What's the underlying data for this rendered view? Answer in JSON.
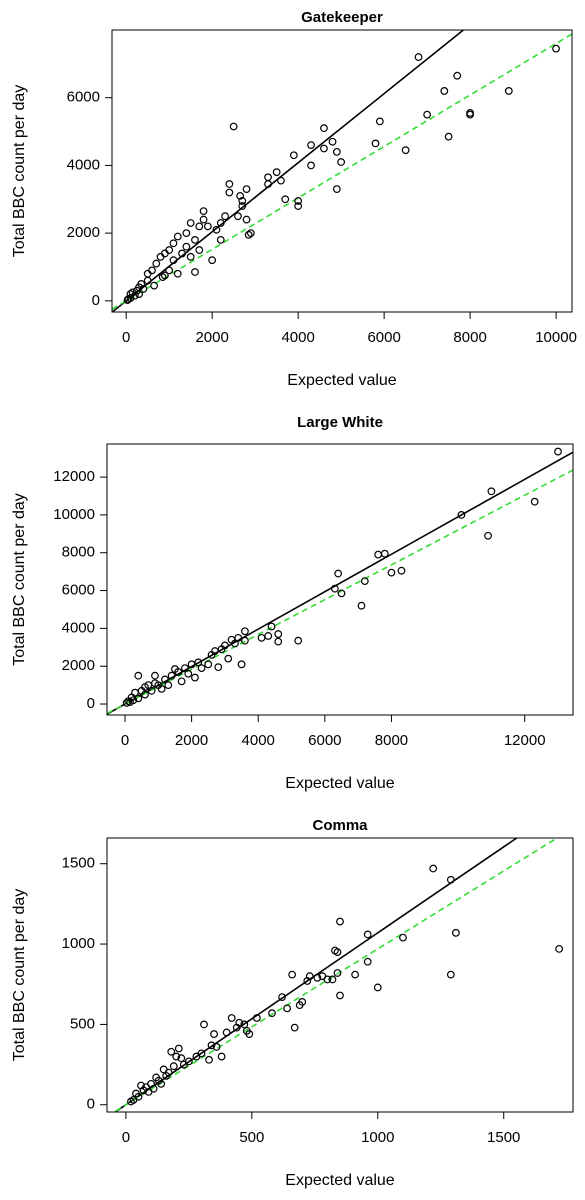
{
  "chart_data": [
    {
      "type": "scatter",
      "title": "Gatekeeper",
      "x_label": "Expected value",
      "y_label": "Total BBC count per day",
      "xlim": [
        -330,
        10370
      ],
      "ylim": [
        -330,
        8000
      ],
      "xticks": [
        0,
        2000,
        4000,
        6000,
        8000,
        10000
      ],
      "yticks": [
        0,
        2000,
        4000,
        6000
      ],
      "color": "#000000",
      "x": [
        10000,
        8900,
        8000,
        8000,
        7700,
        7400,
        7500,
        7000,
        6800,
        6500,
        5900,
        5800,
        5000,
        4900,
        4900,
        4800,
        4600,
        4600,
        4300,
        4300,
        4000,
        4000,
        3900,
        3700,
        3600,
        3500,
        3300,
        3300,
        2900,
        2850,
        2800,
        2800,
        2700,
        2700,
        2650,
        2600,
        2500,
        2400,
        2400,
        2300,
        2200,
        2000,
        1900,
        1800,
        1800,
        1700,
        1600,
        1600,
        1500,
        1400,
        1400,
        1300,
        1200,
        1100,
        1100,
        1000,
        1000,
        900,
        850,
        800,
        700,
        650,
        600,
        500,
        500,
        400,
        350,
        300,
        300,
        250,
        200,
        150,
        100,
        100,
        50,
        30,
        1500,
        1200,
        900,
        2100,
        1700,
        2200
      ],
      "values": [
        7450,
        6200,
        5500,
        5550,
        6650,
        6200,
        4850,
        5500,
        7200,
        4450,
        5300,
        4650,
        4100,
        4400,
        3300,
        4700,
        5100,
        4500,
        4600,
        4000,
        2950,
        2800,
        4300,
        3000,
        3550,
        3800,
        3450,
        3650,
        2000,
        1950,
        2400,
        3300,
        2800,
        2950,
        3100,
        2500,
        5150,
        3450,
        3200,
        2500,
        1800,
        1200,
        2200,
        2650,
        2400,
        2200,
        850,
        1800,
        2300,
        1600,
        2000,
        1400,
        1900,
        1700,
        1200,
        1500,
        900,
        1400,
        700,
        1300,
        1100,
        450,
        900,
        600,
        800,
        350,
        500,
        200,
        400,
        300,
        150,
        250,
        80,
        200,
        50,
        20,
        1300,
        800,
        750,
        2100,
        1500,
        2300
      ],
      "fits": [
        {
          "slope": 1.02,
          "intercept": 0,
          "color": "#000000",
          "dashed": false
        },
        {
          "slope": 0.76,
          "intercept": 0,
          "color": "#33dd33",
          "dashed": true
        }
      ]
    },
    {
      "type": "scatter",
      "title": "Large White",
      "x_label": "Expected value",
      "y_label": "Total BBC count per day",
      "xlim": [
        -540,
        13450
      ],
      "ylim": [
        -580,
        13750
      ],
      "xticks": [
        0,
        2000,
        4000,
        6000,
        8000,
        12000
      ],
      "yticks": [
        0,
        2000,
        4000,
        6000,
        8000,
        10000,
        12000
      ],
      "color": "#000000",
      "x": [
        13000,
        12300,
        11000,
        10900,
        10100,
        8300,
        8000,
        7800,
        7600,
        7200,
        7100,
        6500,
        6400,
        6300,
        5200,
        4600,
        4600,
        4400,
        4300,
        4100,
        3600,
        3600,
        3500,
        3400,
        3300,
        3200,
        3100,
        2900,
        2800,
        2700,
        2600,
        2500,
        2300,
        2200,
        2100,
        2000,
        1900,
        1800,
        1700,
        1500,
        1400,
        1300,
        1200,
        1000,
        900,
        800,
        700,
        600,
        500,
        400,
        400,
        300,
        250,
        200,
        150,
        100,
        50,
        1100,
        900,
        600,
        3000,
        1600
      ],
      "values": [
        13350,
        10700,
        11250,
        8900,
        10000,
        7050,
        6950,
        7950,
        7900,
        6500,
        5200,
        5850,
        6900,
        6100,
        3350,
        3700,
        3300,
        4100,
        3600,
        3500,
        3850,
        3350,
        2100,
        3500,
        3200,
        3400,
        2400,
        2900,
        1950,
        2800,
        2600,
        2100,
        1900,
        2200,
        1400,
        2100,
        1600,
        1900,
        1200,
        1850,
        1500,
        1000,
        1300,
        1000,
        1500,
        700,
        1000,
        500,
        700,
        1500,
        300,
        600,
        200,
        350,
        100,
        150,
        60,
        800,
        1100,
        900,
        3100,
        1700
      ],
      "fits": [
        {
          "slope": 0.99,
          "intercept": 0,
          "color": "#000000",
          "dashed": false
        },
        {
          "slope": 0.92,
          "intercept": 0,
          "color": "#33dd33",
          "dashed": true
        }
      ]
    },
    {
      "type": "scatter",
      "title": "Comma",
      "x_label": "Expected value",
      "y_label": "Total BBC count per day",
      "xlim": [
        -75,
        1775
      ],
      "ylim": [
        -45,
        1660
      ],
      "xticks": [
        0,
        500,
        1000,
        1500
      ],
      "yticks": [
        0,
        500,
        1000,
        1500
      ],
      "color": "#000000",
      "x": [
        1720,
        1310,
        1290,
        1290,
        1220,
        1100,
        1000,
        960,
        960,
        910,
        850,
        850,
        840,
        840,
        830,
        820,
        800,
        780,
        760,
        730,
        720,
        700,
        690,
        670,
        660,
        640,
        620,
        580,
        520,
        490,
        480,
        470,
        450,
        440,
        420,
        400,
        380,
        360,
        350,
        340,
        330,
        310,
        300,
        280,
        250,
        230,
        220,
        210,
        200,
        190,
        180,
        170,
        160,
        150,
        140,
        130,
        120,
        110,
        100,
        90,
        80,
        70,
        60,
        50,
        40,
        30,
        20
      ],
      "values": [
        970,
        1070,
        1400,
        810,
        1470,
        1040,
        730,
        1060,
        890,
        810,
        1140,
        680,
        820,
        950,
        960,
        780,
        780,
        800,
        790,
        800,
        770,
        640,
        620,
        480,
        810,
        600,
        670,
        570,
        540,
        440,
        460,
        500,
        510,
        480,
        540,
        450,
        300,
        360,
        440,
        370,
        280,
        500,
        320,
        300,
        270,
        250,
        290,
        350,
        300,
        240,
        330,
        200,
        180,
        220,
        130,
        150,
        170,
        100,
        130,
        80,
        110,
        90,
        120,
        50,
        70,
        30,
        20
      ],
      "fits": [
        {
          "slope": 1.07,
          "intercept": 0,
          "color": "#000000",
          "dashed": false
        },
        {
          "slope": 0.97,
          "intercept": 0,
          "color": "#33dd33",
          "dashed": true
        }
      ]
    }
  ]
}
